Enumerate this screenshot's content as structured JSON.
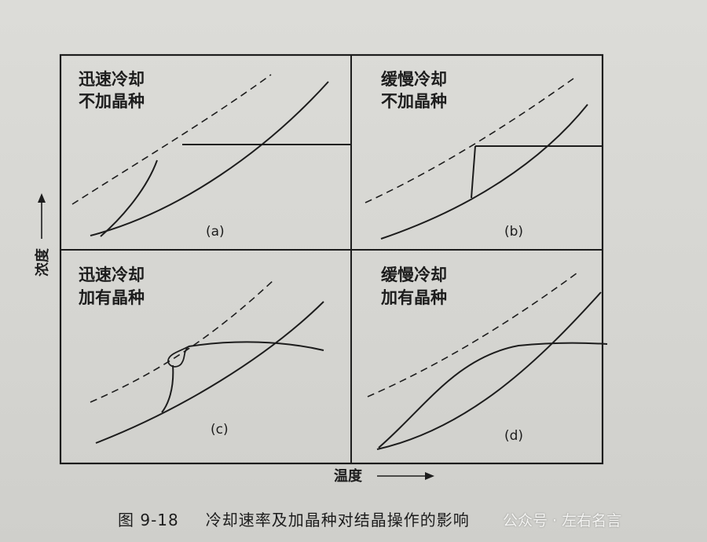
{
  "figure": {
    "caption_number": "图 9-18",
    "caption_title": "冷却速率及加晶种对结晶操作的影响",
    "x_axis_label": "温度",
    "y_axis_label": "浓度",
    "panels": [
      {
        "id": "a",
        "line1": "迅速冷却",
        "line2": "不加晶种",
        "tag": "(a)"
      },
      {
        "id": "b",
        "line1": "缓慢冷却",
        "line2": "不加晶种",
        "tag": "(b)"
      },
      {
        "id": "c",
        "line1": "迅速冷却",
        "line2": "加有晶种",
        "tag": "(c)"
      },
      {
        "id": "d",
        "line1": "缓慢冷却",
        "line2": "加有晶种",
        "tag": "(d)"
      }
    ]
  },
  "watermark": "公众号 · 左右名言",
  "colors": {
    "ink": "#1d1d1d",
    "paper": "#d9d9d5"
  }
}
